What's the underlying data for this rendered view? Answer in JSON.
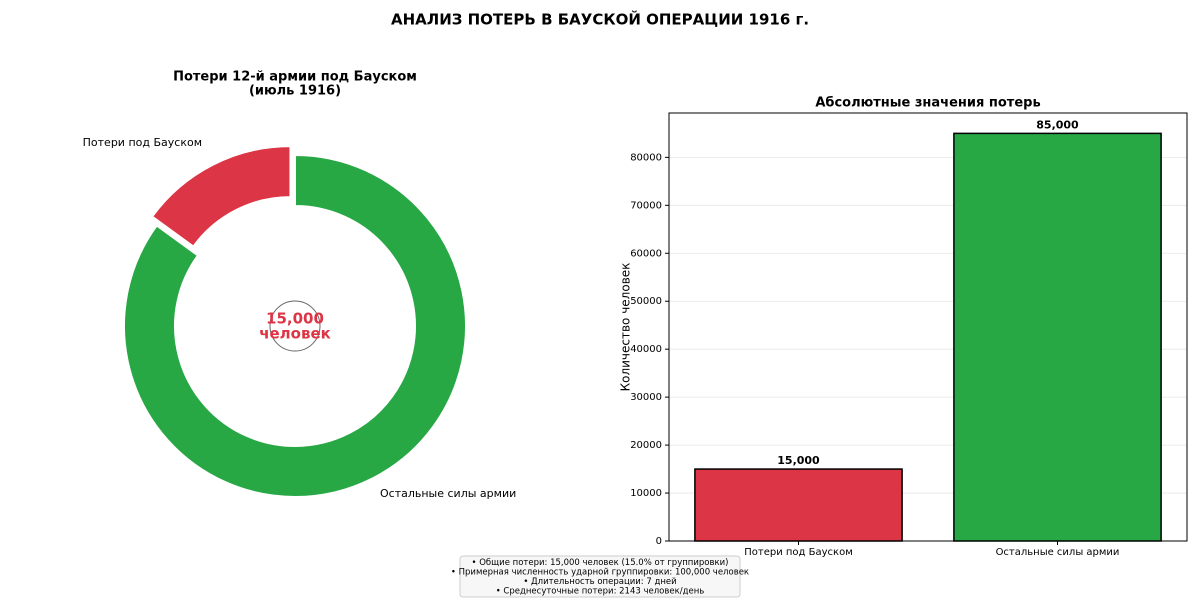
{
  "title": "АНАЛИЗ ПОТЕРЬ В БАУСКОЙ ОПЕРАЦИИ 1916 г.",
  "chart_data": [
    {
      "type": "donut",
      "title": [
        "Потери 12-й армии под Бауском",
        "(июль 1916)"
      ],
      "categories": [
        "Потери под Бауском",
        "Остальные силы армии"
      ],
      "values": [
        15000,
        85000
      ],
      "colors": [
        "#dc3545",
        "#28a745"
      ],
      "explode": [
        true,
        false
      ],
      "center_label": {
        "value": 15000,
        "label": "15,000"
      },
      "center_unit": "человек"
    },
    {
      "type": "bar",
      "title": "Абсолютные значения потерь",
      "categories": [
        "Потери под Бауском",
        "Остальные силы армии"
      ],
      "values": [
        15000,
        85000
      ],
      "value_labels": [
        "15,000",
        "85,000"
      ],
      "colors": [
        "#dc3545",
        "#28a745"
      ],
      "ylabel": "Количество человек",
      "ylim": [
        0,
        89250
      ],
      "yticks": [
        0,
        10000,
        20000,
        30000,
        40000,
        50000,
        60000,
        70000,
        80000
      ],
      "grid": true
    }
  ],
  "notes": [
    "• Общие потери: 15,000 человек (15.0% от группировки)",
    "• Примерная численность ударной группировки: 100,000 человек",
    "• Длительность операции: 7 дней",
    "• Среднесуточные потери: 2143 человек/день"
  ]
}
